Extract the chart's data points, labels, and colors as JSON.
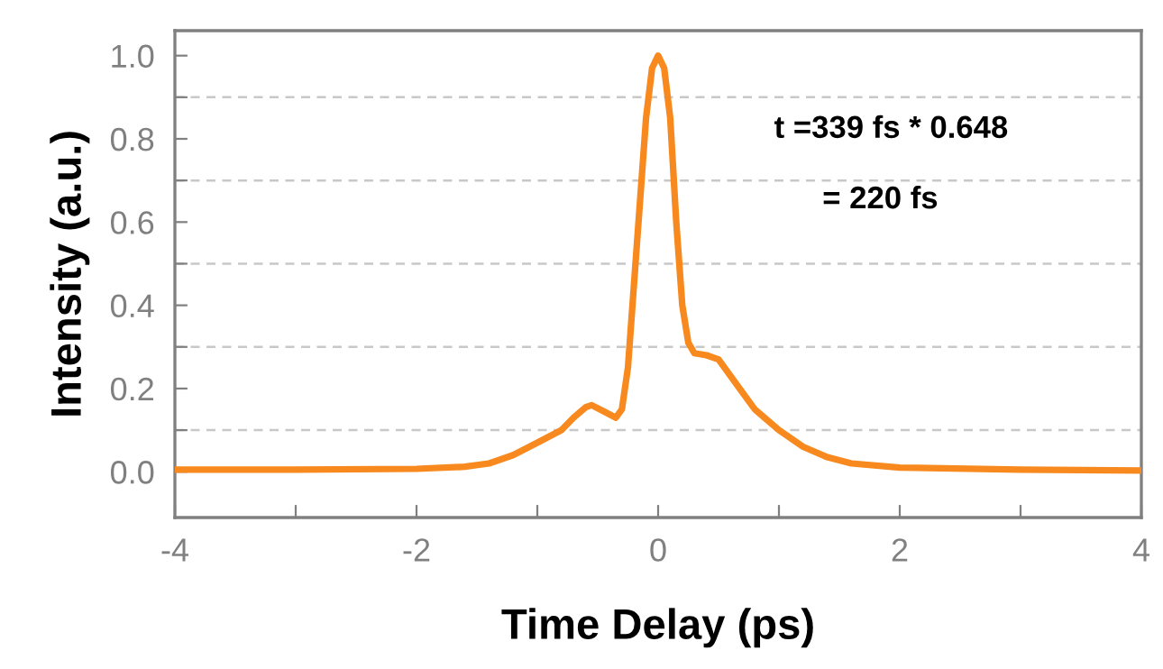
{
  "chart_data": {
    "type": "line",
    "xlabel": "Time Delay (ps)",
    "ylabel": "Intensity (a.u.)",
    "x": [
      -4,
      -3,
      -2,
      -1.6,
      -1.4,
      -1.2,
      -1.0,
      -0.8,
      -0.7,
      -0.6,
      -0.55,
      -0.45,
      -0.35,
      -0.3,
      -0.25,
      -0.2,
      -0.15,
      -0.1,
      -0.05,
      0,
      0.05,
      0.1,
      0.15,
      0.2,
      0.25,
      0.3,
      0.4,
      0.5,
      0.6,
      0.7,
      0.8,
      1.0,
      1.2,
      1.4,
      1.6,
      2.0,
      3,
      4
    ],
    "series": [
      {
        "color": "#f7891e",
        "values": [
          0.005,
          0.005,
          0.007,
          0.012,
          0.02,
          0.04,
          0.07,
          0.1,
          0.13,
          0.155,
          0.16,
          0.145,
          0.13,
          0.15,
          0.25,
          0.45,
          0.65,
          0.85,
          0.97,
          1.0,
          0.97,
          0.85,
          0.6,
          0.4,
          0.31,
          0.285,
          0.28,
          0.27,
          0.23,
          0.19,
          0.15,
          0.1,
          0.06,
          0.035,
          0.02,
          0.01,
          0.005,
          0.003
        ]
      }
    ],
    "xlim": [
      -4,
      4
    ],
    "ylim": [
      -0.11,
      1.06
    ],
    "xticks": [
      -4,
      {
        "value": -3,
        "label": null
      },
      -2,
      {
        "value": -1,
        "label": null
      },
      0,
      {
        "value": 1,
        "label": null
      },
      2,
      {
        "value": 3,
        "label": null
      },
      4
    ],
    "yticks": [
      "0.0",
      {
        "value": 0.1,
        "label": null
      },
      {
        "value": 0.2,
        "label": "0.2"
      },
      {
        "value": 0.3,
        "label": null
      },
      {
        "value": 0.4,
        "label": "0.4"
      },
      {
        "value": 0.5,
        "label": null
      },
      {
        "value": 0.6,
        "label": "0.6"
      },
      {
        "value": 0.7,
        "label": null
      },
      {
        "value": 0.8,
        "label": "0.8"
      },
      {
        "value": 0.9,
        "label": null
      },
      {
        "value": 1.0,
        "label": "1.0"
      }
    ],
    "ref_lines": [
      {
        "axis": "y",
        "value": 0.1,
        "color": "#c8c8c8",
        "line_style": "dashed"
      },
      {
        "axis": "y",
        "value": 0.3,
        "color": "#c8c8c8",
        "line_style": "dashed"
      },
      {
        "axis": "y",
        "value": 0.5,
        "color": "#c8c8c8",
        "line_style": "dashed"
      },
      {
        "axis": "y",
        "value": 0.7,
        "color": "#c8c8c8",
        "line_style": "dashed"
      },
      {
        "axis": "y",
        "value": 0.9,
        "color": "#c8c8c8",
        "line_style": "dashed"
      }
    ],
    "annotations": [
      "t =339 fs * 0.648",
      "= 220 fs"
    ],
    "grid": false,
    "legend": false,
    "marker": "none",
    "line_style": "solid"
  }
}
